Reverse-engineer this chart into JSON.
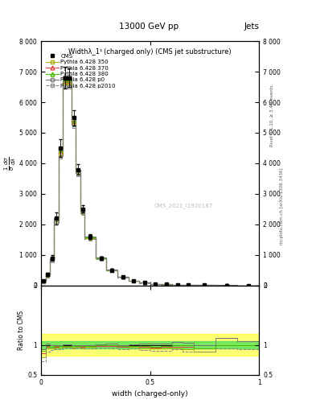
{
  "title_top": "13000 GeV pp",
  "title_right": "Jets",
  "plot_title": "Widthλ_1¹ (charged only) (CMS jet substructure)",
  "xlabel": "width (charged-only)",
  "ylabel_ratio": "Ratio to CMS",
  "right_label_top": "Rivet 3.1.10, ≥ 3.4M events",
  "right_label_bottom": "mcplots.cern.ch [arXiv:1306.3436]",
  "watermark": "CMS_2021_I1920187",
  "xlim": [
    0.0,
    1.0
  ],
  "ylim_main": [
    0,
    8000
  ],
  "ylim_ratio": [
    0.5,
    2.0
  ],
  "x_bins": [
    0.0,
    0.02,
    0.04,
    0.06,
    0.08,
    0.1,
    0.12,
    0.14,
    0.16,
    0.18,
    0.2,
    0.25,
    0.3,
    0.35,
    0.4,
    0.45,
    0.5,
    0.55,
    0.6,
    0.65,
    0.7,
    0.8,
    0.9,
    1.0
  ],
  "cms_data_y": [
    150,
    350,
    900,
    2200,
    4500,
    6800,
    6800,
    5500,
    3800,
    2500,
    1600,
    900,
    500,
    280,
    160,
    90,
    55,
    32,
    20,
    14,
    9,
    4,
    1.5
  ],
  "cms_err": [
    30,
    50,
    100,
    200,
    300,
    350,
    300,
    250,
    180,
    120,
    80,
    50,
    30,
    20,
    15,
    10,
    8,
    6,
    5,
    4,
    3,
    2,
    1
  ],
  "py350_y": [
    120,
    330,
    850,
    2100,
    4300,
    6600,
    6600,
    5300,
    3700,
    2400,
    1550,
    880,
    490,
    270,
    155,
    85,
    52,
    30,
    19,
    13,
    8,
    4,
    1.5
  ],
  "py370_y": [
    130,
    340,
    870,
    2150,
    4400,
    6700,
    6700,
    5380,
    3740,
    2440,
    1570,
    890,
    495,
    272,
    157,
    87,
    53,
    31,
    19.5,
    13.5,
    8.5,
    4,
    1.5
  ],
  "py380_y": [
    135,
    345,
    875,
    2160,
    4420,
    6720,
    6720,
    5400,
    3750,
    2450,
    1580,
    895,
    498,
    274,
    158,
    88,
    53.5,
    31.5,
    20,
    14,
    8.5,
    4,
    1.5
  ],
  "pyp0_y": [
    140,
    360,
    900,
    2200,
    4500,
    6850,
    6850,
    5500,
    3800,
    2500,
    1600,
    910,
    510,
    280,
    162,
    92,
    56,
    33,
    21,
    14.5,
    9,
    4.5,
    1.6
  ],
  "pyp2010_y": [
    110,
    310,
    820,
    2050,
    4200,
    6500,
    6500,
    5200,
    3640,
    2370,
    1520,
    860,
    480,
    262,
    150,
    83,
    50,
    29,
    18.5,
    12.5,
    8,
    3.8,
    1.4
  ],
  "colors": {
    "cms": "#000000",
    "py350": "#aaaa00",
    "py370": "#dd4444",
    "py380": "#44bb00",
    "pyp0": "#777777",
    "pyp2010": "#888888"
  },
  "ratio_band_yellow_lo": 0.82,
  "ratio_band_yellow_hi": 1.18,
  "ratio_band_green_lo": 0.94,
  "ratio_band_green_hi": 1.06,
  "yticks_main": [
    0,
    1000,
    2000,
    3000,
    4000,
    5000,
    6000,
    7000,
    8000
  ],
  "ytick_labels_main": [
    "0",
    "1 000",
    "2 000",
    "3 000",
    "4 000",
    "5 000",
    "6 000",
    "7 000",
    "8 000"
  ],
  "legend_labels": [
    "CMS",
    "Pythia 6.428 350",
    "Pythia 6.428 370",
    "Pythia 6.428 380",
    "Pythia 6.428 p0",
    "Pythia 6.428 p2010"
  ]
}
